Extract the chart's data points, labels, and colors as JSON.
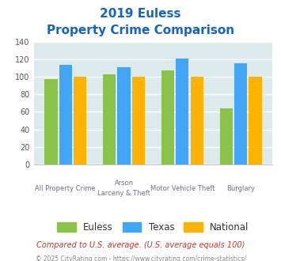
{
  "title_line1": "2019 Euless",
  "title_line2": "Property Crime Comparison",
  "cat_labels_top": [
    "All Property Crime",
    "Arson",
    "Motor Vehicle Theft",
    "Burglary"
  ],
  "cat_labels_bot": [
    "",
    "Larceny & Theft",
    "",
    ""
  ],
  "euless": [
    97,
    103,
    107,
    64
  ],
  "texas": [
    114,
    111,
    121,
    115
  ],
  "national": [
    100,
    100,
    100,
    100
  ],
  "euless_color": "#8bc34a",
  "texas_color": "#42a5f5",
  "national_color": "#ffb300",
  "bg_color": "#dce9ed",
  "grid_color": "#ffffff",
  "ylim": [
    0,
    140
  ],
  "yticks": [
    0,
    20,
    40,
    60,
    80,
    100,
    120,
    140
  ],
  "ylabel_color": "#555555",
  "title_color": "#1565c0",
  "subtitle_note": "Compared to U.S. average. (U.S. average equals 100)",
  "subtitle_note_color": "#c0392b",
  "footer": "© 2025 CityRating.com - https://www.cityrating.com/crime-statistics/",
  "footer_color": "#888888",
  "legend_labels": [
    "Euless",
    "Texas",
    "National"
  ],
  "xlabel_color": "#7a6a8a"
}
